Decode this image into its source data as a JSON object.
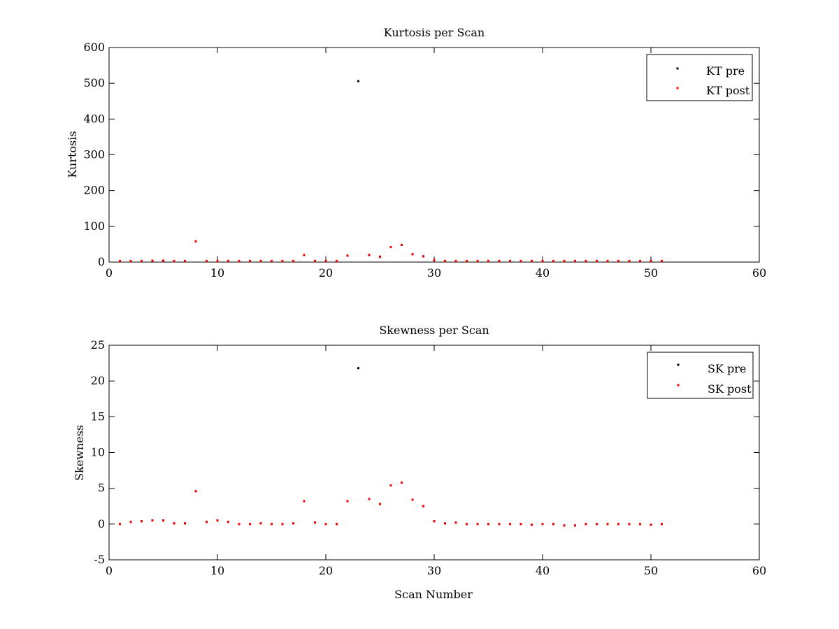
{
  "chart_data": [
    {
      "type": "scatter",
      "title": "Kurtosis per Scan",
      "xlabel": "",
      "ylabel": "Kurtosis",
      "xlim": [
        0,
        60
      ],
      "ylim": [
        0,
        600
      ],
      "xticks": [
        0,
        10,
        20,
        30,
        40,
        50,
        60
      ],
      "yticks": [
        0,
        100,
        200,
        300,
        400,
        500,
        600
      ],
      "grid": false,
      "legend_position": "top-right",
      "series": [
        {
          "name": "KT pre",
          "color": "#000000",
          "x": [
            1,
            2,
            3,
            4,
            5,
            6,
            7,
            8,
            9,
            10,
            11,
            12,
            13,
            14,
            15,
            16,
            17,
            18,
            19,
            20,
            21,
            22,
            23,
            24,
            25,
            26,
            27,
            28,
            29,
            30,
            31,
            32,
            33,
            34,
            35,
            36,
            37,
            38,
            39,
            40,
            41,
            42,
            43,
            44,
            45,
            46,
            47,
            48,
            49,
            50,
            51
          ],
          "y": [
            3,
            3,
            3,
            4,
            4,
            3,
            3,
            58,
            3,
            3,
            3,
            3,
            3,
            3,
            3,
            3,
            3,
            20,
            3,
            3,
            3,
            18,
            506,
            20,
            15,
            42,
            48,
            22,
            16,
            5,
            3,
            3,
            3,
            3,
            3,
            3,
            3,
            3,
            3,
            3,
            3,
            3,
            3,
            3,
            3,
            3,
            3,
            3,
            3,
            3,
            3
          ]
        },
        {
          "name": "KT post",
          "color": "#ff0000",
          "x": [
            1,
            2,
            3,
            4,
            5,
            6,
            7,
            8,
            9,
            10,
            11,
            12,
            13,
            14,
            15,
            16,
            17,
            18,
            19,
            20,
            21,
            22,
            24,
            25,
            26,
            27,
            28,
            29,
            30,
            31,
            32,
            33,
            34,
            35,
            36,
            37,
            38,
            39,
            40,
            41,
            42,
            43,
            44,
            45,
            46,
            47,
            48,
            49,
            50,
            51
          ],
          "y": [
            3,
            3,
            3,
            4,
            4,
            3,
            3,
            58,
            3,
            3,
            3,
            3,
            3,
            3,
            3,
            3,
            3,
            20,
            3,
            3,
            3,
            18,
            20,
            15,
            42,
            48,
            22,
            16,
            5,
            3,
            3,
            3,
            3,
            3,
            3,
            3,
            3,
            3,
            3,
            3,
            3,
            3,
            3,
            3,
            3,
            3,
            3,
            3,
            3,
            3
          ]
        }
      ]
    },
    {
      "type": "scatter",
      "title": "Skewness per Scan",
      "xlabel": "Scan Number",
      "ylabel": "Skewness",
      "xlim": [
        0,
        60
      ],
      "ylim": [
        -5,
        25
      ],
      "xticks": [
        0,
        10,
        20,
        30,
        40,
        50,
        60
      ],
      "yticks": [
        -5,
        0,
        5,
        10,
        15,
        20,
        25
      ],
      "grid": false,
      "legend_position": "top-right",
      "series": [
        {
          "name": "SK pre",
          "color": "#000000",
          "x": [
            1,
            2,
            3,
            4,
            5,
            6,
            7,
            8,
            9,
            10,
            11,
            12,
            13,
            14,
            15,
            16,
            17,
            18,
            19,
            20,
            21,
            22,
            23,
            24,
            25,
            26,
            27,
            28,
            29,
            30,
            31,
            32,
            33,
            34,
            35,
            36,
            37,
            38,
            39,
            40,
            41,
            42,
            43,
            44,
            45,
            46,
            47,
            48,
            49,
            50,
            51
          ],
          "y": [
            0,
            0.3,
            0.4,
            0.5,
            0.5,
            0.1,
            0.1,
            4.6,
            0.3,
            0.5,
            0.3,
            0,
            0,
            0.1,
            0,
            0,
            0.1,
            3.2,
            0.2,
            0,
            0,
            3.2,
            21.8,
            3.5,
            2.8,
            5.4,
            5.8,
            3.4,
            2.5,
            0.4,
            0.1,
            0.2,
            0,
            0,
            0,
            0,
            0,
            0,
            -0.1,
            0,
            0,
            -0.2,
            -0.2,
            0,
            0,
            0,
            0,
            0,
            0,
            -0.1,
            0
          ]
        },
        {
          "name": "SK post",
          "color": "#ff0000",
          "x": [
            1,
            2,
            3,
            4,
            5,
            6,
            7,
            8,
            9,
            10,
            11,
            12,
            13,
            14,
            15,
            16,
            17,
            18,
            19,
            20,
            21,
            22,
            24,
            25,
            26,
            27,
            28,
            29,
            30,
            31,
            32,
            33,
            34,
            35,
            36,
            37,
            38,
            39,
            40,
            41,
            42,
            43,
            44,
            45,
            46,
            47,
            48,
            49,
            50,
            51
          ],
          "y": [
            0,
            0.3,
            0.4,
            0.5,
            0.5,
            0.1,
            0.1,
            4.6,
            0.3,
            0.5,
            0.3,
            0,
            0,
            0.1,
            0,
            0,
            0.1,
            3.2,
            0.2,
            0,
            0,
            3.2,
            3.5,
            2.8,
            5.4,
            5.8,
            3.4,
            2.5,
            0.4,
            0.1,
            0.2,
            0,
            0,
            0,
            0,
            0,
            0,
            -0.1,
            0,
            0,
            -0.2,
            -0.2,
            0,
            0,
            0,
            0,
            0,
            0,
            -0.1,
            0
          ]
        }
      ]
    }
  ]
}
